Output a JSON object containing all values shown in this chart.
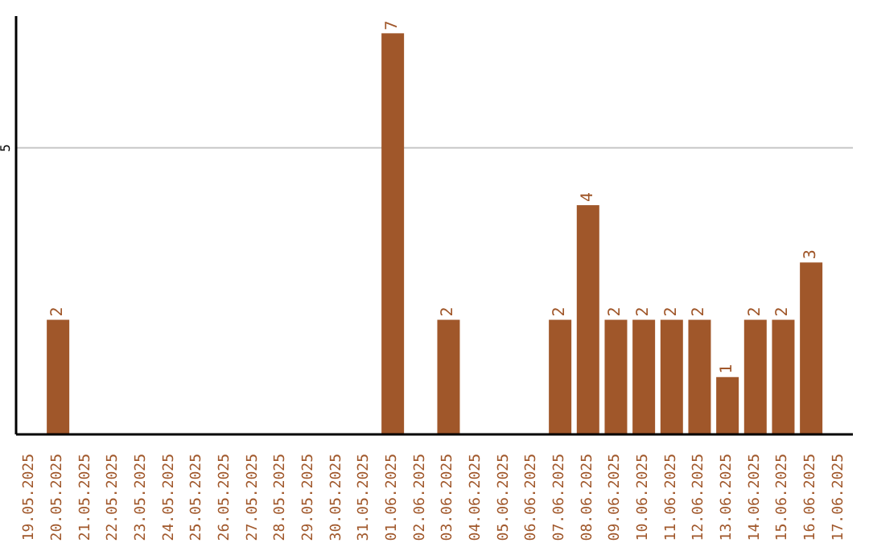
{
  "chart_data": {
    "type": "bar",
    "categories": [
      "19.05.2025",
      "20.05.2025",
      "21.05.2025",
      "22.05.2025",
      "23.05.2025",
      "24.05.2025",
      "25.05.2025",
      "26.05.2025",
      "27.05.2025",
      "28.05.2025",
      "29.05.2025",
      "30.05.2025",
      "31.05.2025",
      "01.06.2025",
      "02.06.2025",
      "03.06.2025",
      "04.06.2025",
      "05.06.2025",
      "06.06.2025",
      "07.06.2025",
      "08.06.2025",
      "09.06.2025",
      "10.06.2025",
      "11.06.2025",
      "12.06.2025",
      "13.06.2025",
      "14.06.2025",
      "15.06.2025",
      "16.06.2025",
      "17.06.2025"
    ],
    "values": [
      0,
      2,
      0,
      0,
      0,
      0,
      0,
      0,
      0,
      0,
      0,
      0,
      0,
      7,
      0,
      2,
      0,
      0,
      0,
      2,
      4,
      2,
      2,
      2,
      2,
      1,
      2,
      2,
      3,
      0
    ],
    "value_labels": [
      null,
      "2",
      null,
      null,
      null,
      null,
      null,
      null,
      null,
      null,
      null,
      null,
      null,
      "7",
      null,
      "2",
      null,
      null,
      null,
      "2",
      "4",
      "2",
      "2",
      "2",
      "2",
      "1",
      "2",
      "2",
      "3",
      null
    ],
    "color": "#a0572a",
    "ylim": [
      0,
      7.3
    ],
    "yticks": [
      5
    ],
    "grid": "y"
  }
}
